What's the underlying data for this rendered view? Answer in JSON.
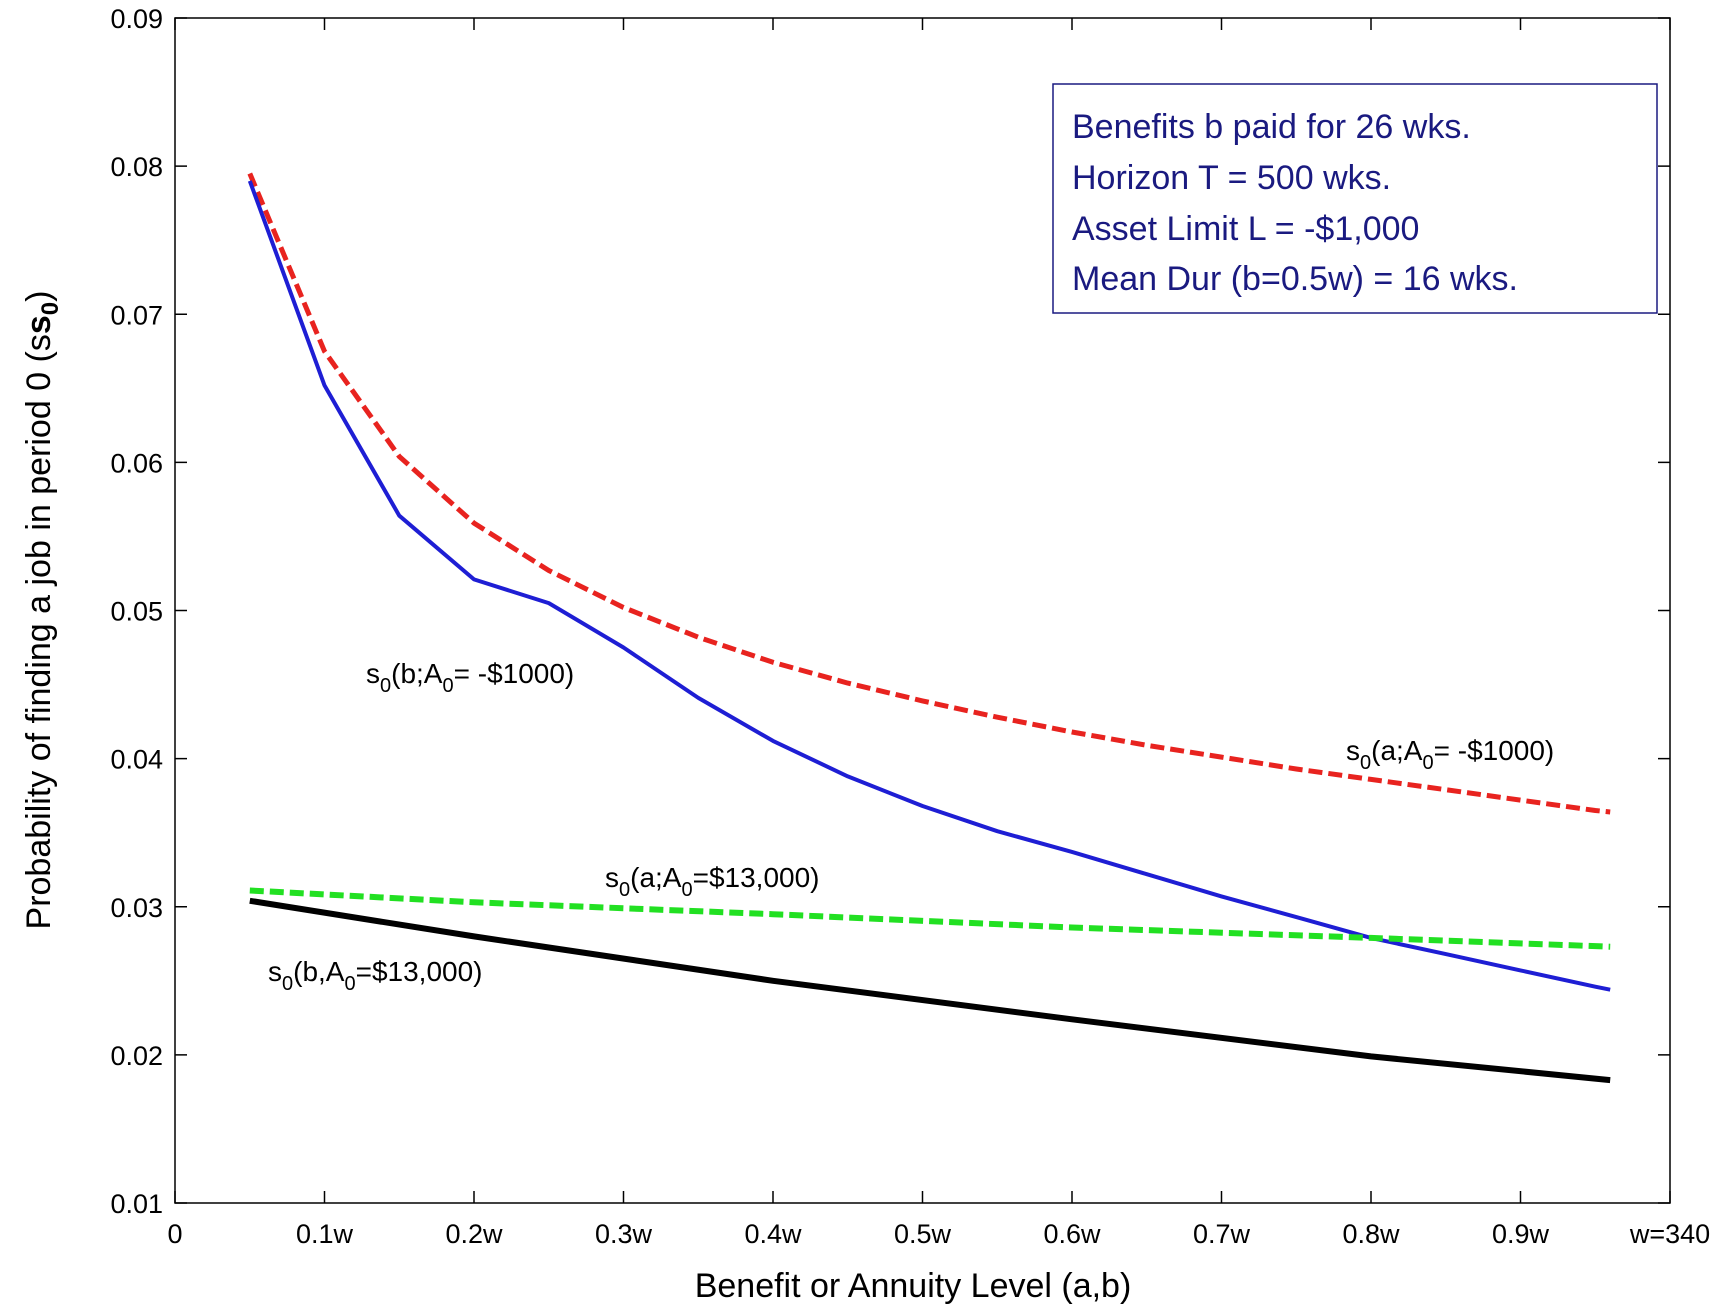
{
  "chart_data": {
    "type": "line",
    "xlabel": "Benefit or Annuity Level (a,b)",
    "ylabel": "Probability of finding a job in period 0 (s",
    "ylabel_sub": "0",
    "ylabel_close": ")",
    "ylabel_bold": "s",
    "x_ticks": [
      "0",
      "0.1w",
      "0.2w",
      "0.3w",
      "0.4w",
      "0.5w",
      "0.6w",
      "0.7w",
      "0.8w",
      "0.9w",
      "w=340"
    ],
    "y_ticks": [
      "0.01",
      "0.02",
      "0.03",
      "0.04",
      "0.05",
      "0.06",
      "0.07",
      "0.08",
      "0.09"
    ],
    "xlim": [
      0,
      1.0
    ],
    "ylim": [
      0.01,
      0.09
    ],
    "grid": false,
    "info_box": [
      "Benefits b paid for 26 wks.",
      "Horizon T = 500 wks.",
      "Asset Limit L = -$1,000",
      "Mean Dur (b=0.5w) = 16 wks."
    ],
    "series": [
      {
        "label_pre": "s",
        "label_sub1": "0",
        "label_mid": "(a;A",
        "label_sub2": "0",
        "label_post": "= -$1000)",
        "color": "#e8231f",
        "dash": true,
        "width": 5,
        "x": [
          0.05,
          0.1,
          0.15,
          0.2,
          0.25,
          0.3,
          0.35,
          0.4,
          0.45,
          0.5,
          0.55,
          0.6,
          0.65,
          0.7,
          0.75,
          0.8,
          0.85,
          0.9,
          0.95,
          0.96
        ],
        "y": [
          0.0795,
          0.0675,
          0.0604,
          0.0559,
          0.0527,
          0.0502,
          0.0482,
          0.0465,
          0.0451,
          0.0439,
          0.0428,
          0.0418,
          0.0409,
          0.0401,
          0.0393,
          0.0386,
          0.0379,
          0.0372,
          0.0365,
          0.0364
        ]
      },
      {
        "label_pre": "s",
        "label_sub1": "0",
        "label_mid": "(b;A",
        "label_sub2": "0",
        "label_post": "= -$1000)",
        "color": "#1e1ed4",
        "dash": false,
        "width": 4,
        "x": [
          0.05,
          0.1,
          0.15,
          0.2,
          0.25,
          0.3,
          0.35,
          0.4,
          0.45,
          0.5,
          0.55,
          0.6,
          0.65,
          0.7,
          0.75,
          0.8,
          0.85,
          0.9,
          0.95,
          0.96
        ],
        "y": [
          0.079,
          0.0652,
          0.0564,
          0.0521,
          0.0505,
          0.0475,
          0.0441,
          0.0412,
          0.0388,
          0.0368,
          0.0351,
          0.0337,
          0.0322,
          0.0307,
          0.0293,
          0.0279,
          0.0268,
          0.0257,
          0.0246,
          0.0244
        ]
      },
      {
        "label_pre": "s",
        "label_sub1": "0",
        "label_mid": "(a;A",
        "label_sub2": "0",
        "label_post": "=$13,000)",
        "color": "#22e022",
        "dash": true,
        "width": 6,
        "x": [
          0.05,
          0.2,
          0.4,
          0.6,
          0.8,
          0.96
        ],
        "y": [
          0.0311,
          0.0303,
          0.0295,
          0.0286,
          0.0279,
          0.0273
        ]
      },
      {
        "label_pre": "s",
        "label_sub1": "0",
        "label_mid": "(b,A",
        "label_sub2": "0",
        "label_post": "=$13,000)",
        "color": "#000000",
        "dash": false,
        "width": 6,
        "x": [
          0.05,
          0.2,
          0.4,
          0.6,
          0.8,
          0.96
        ],
        "y": [
          0.0304,
          0.028,
          0.025,
          0.0224,
          0.0199,
          0.0183
        ]
      }
    ]
  }
}
